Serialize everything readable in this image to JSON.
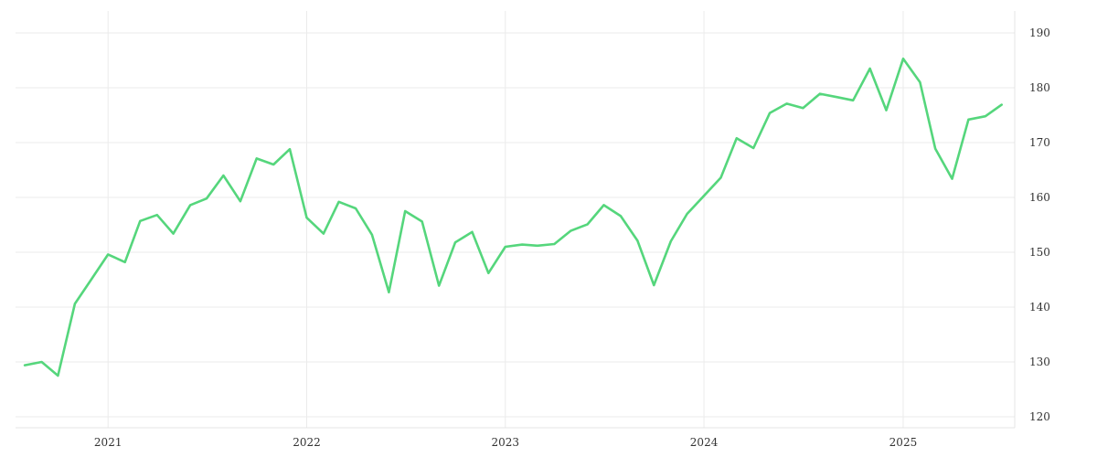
{
  "chart_data": {
    "type": "line",
    "title": "",
    "xlabel": "",
    "ylabel": "",
    "grid": true,
    "legend": "none",
    "colors": {
      "line": "#55d67c",
      "grid": "#ebebeb",
      "text": "#333333"
    },
    "xlim": [
      "2020-07-15",
      "2025-07-25"
    ],
    "ylim": [
      118,
      194
    ],
    "xticks": [
      {
        "date": "2021-01-01",
        "label": "2021"
      },
      {
        "date": "2022-01-01",
        "label": "2022"
      },
      {
        "date": "2023-01-01",
        "label": "2023"
      },
      {
        "date": "2024-01-01",
        "label": "2024"
      },
      {
        "date": "2025-01-01",
        "label": "2025"
      }
    ],
    "yticks": [
      120,
      130,
      140,
      150,
      160,
      170,
      180,
      190
    ],
    "series": [
      {
        "x": [
          "2020-08-01",
          "2020-09-01",
          "2020-10-01",
          "2020-11-01",
          "2020-12-01",
          "2021-01-01",
          "2021-02-01",
          "2021-03-01",
          "2021-04-01",
          "2021-05-01",
          "2021-06-01",
          "2021-07-01",
          "2021-08-01",
          "2021-09-01",
          "2021-10-01",
          "2021-11-01",
          "2021-12-01",
          "2022-01-01",
          "2022-02-01",
          "2022-03-01",
          "2022-04-01",
          "2022-05-01",
          "2022-06-01",
          "2022-07-01",
          "2022-08-01",
          "2022-09-01",
          "2022-10-01",
          "2022-11-01",
          "2022-12-01",
          "2023-01-01",
          "2023-02-01",
          "2023-03-01",
          "2023-04-01",
          "2023-05-01",
          "2023-06-01",
          "2023-07-01",
          "2023-08-01",
          "2023-09-01",
          "2023-10-01",
          "2023-11-01",
          "2023-12-01",
          "2024-01-01",
          "2024-02-01",
          "2024-03-01",
          "2024-04-01",
          "2024-05-01",
          "2024-06-01",
          "2024-07-01",
          "2024-08-01",
          "2024-09-01",
          "2024-10-01",
          "2024-11-01",
          "2024-12-01",
          "2025-01-01",
          "2025-02-01",
          "2025-03-01",
          "2025-04-01",
          "2025-05-01",
          "2025-06-01",
          "2025-07-01"
        ],
        "values": [
          129.4,
          130.0,
          127.5,
          140.6,
          145.0,
          149.6,
          148.2,
          155.7,
          156.8,
          153.4,
          158.6,
          159.8,
          164.0,
          159.3,
          167.1,
          166.0,
          168.8,
          156.3,
          153.4,
          159.2,
          158.0,
          153.2,
          142.7,
          157.5,
          155.6,
          143.9,
          151.8,
          153.7,
          146.2,
          151.0,
          151.4,
          151.2,
          151.5,
          153.9,
          155.1,
          158.6,
          156.6,
          152.1,
          144.0,
          152.0,
          157.0,
          160.3,
          163.6,
          170.8,
          169.0,
          175.4,
          177.1,
          176.3,
          178.9,
          178.3,
          177.7,
          183.5,
          175.9,
          185.3,
          181.0,
          168.9,
          163.4,
          174.2,
          174.8,
          176.9
        ]
      }
    ]
  }
}
